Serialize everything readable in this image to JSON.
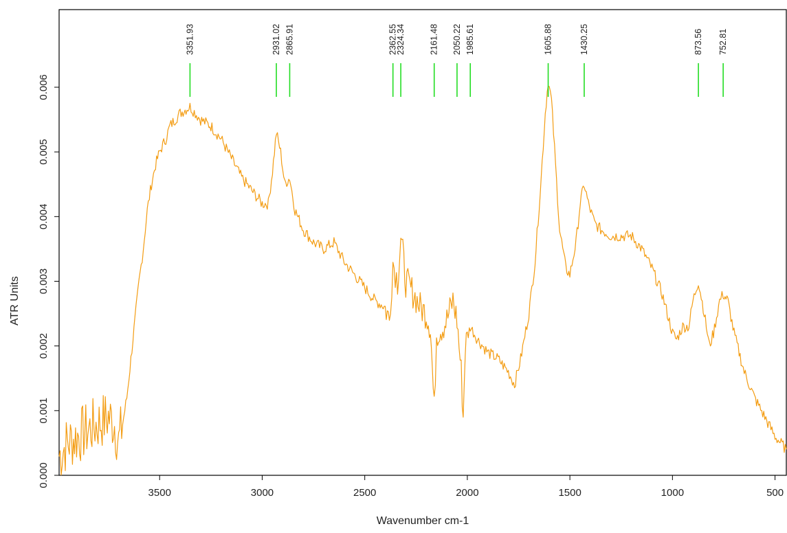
{
  "chart_data": {
    "type": "line",
    "title": "",
    "xlabel": "Wavenumber cm-1",
    "ylabel": "ATR Units",
    "xlim": [
      3990,
      445
    ],
    "ylim": [
      0.0,
      0.0072
    ],
    "x_reversed": true,
    "grid": false,
    "legend": "none",
    "xticks": [
      3500,
      3000,
      2500,
      2000,
      1500,
      1000,
      500
    ],
    "xtick_labels": [
      "3500",
      "3000",
      "2500",
      "2000",
      "1500",
      "1000",
      "500"
    ],
    "yticks": [
      0.0,
      0.001,
      0.002,
      0.003,
      0.004,
      0.005,
      0.006
    ],
    "ytick_labels": [
      "0.000",
      "0.001",
      "0.002",
      "0.003",
      "0.004",
      "0.005",
      "0.006"
    ],
    "colors": {
      "spectrum": "#f39c12",
      "peak_marker": "#22dd22",
      "axis": "#000000"
    },
    "series": [
      {
        "points": [
          [
            3990,
            0.0003
          ],
          [
            3950,
            0.0005
          ],
          [
            3900,
            0.0006
          ],
          [
            3850,
            0.0007
          ],
          [
            3800,
            0.0008
          ],
          [
            3750,
            0.0009
          ],
          [
            3720,
            0.0008
          ],
          [
            3700,
            0.0005
          ],
          [
            3680,
            0.0008
          ],
          [
            3660,
            0.0012
          ],
          [
            3640,
            0.0018
          ],
          [
            3620,
            0.0024
          ],
          [
            3600,
            0.003
          ],
          [
            3580,
            0.0035
          ],
          [
            3560,
            0.0041
          ],
          [
            3540,
            0.0045
          ],
          [
            3520,
            0.0048
          ],
          [
            3500,
            0.005
          ],
          [
            3470,
            0.0052
          ],
          [
            3450,
            0.0054
          ],
          [
            3400,
            0.0056
          ],
          [
            3351.93,
            0.0057
          ],
          [
            3300,
            0.0055
          ],
          [
            3250,
            0.0054
          ],
          [
            3200,
            0.0052
          ],
          [
            3150,
            0.0049
          ],
          [
            3100,
            0.0046
          ],
          [
            3050,
            0.0044
          ],
          [
            3000,
            0.0042
          ],
          [
            2970,
            0.0042
          ],
          [
            2950,
            0.0047
          ],
          [
            2931.02,
            0.0053
          ],
          [
            2910,
            0.005
          ],
          [
            2890,
            0.0045
          ],
          [
            2865.91,
            0.0046
          ],
          [
            2840,
            0.0041
          ],
          [
            2800,
            0.0038
          ],
          [
            2750,
            0.0036
          ],
          [
            2700,
            0.0035
          ],
          [
            2650,
            0.0036
          ],
          [
            2600,
            0.0033
          ],
          [
            2550,
            0.0031
          ],
          [
            2500,
            0.0029
          ],
          [
            2450,
            0.0027
          ],
          [
            2400,
            0.0026
          ],
          [
            2380,
            0.0024
          ],
          [
            2362.55,
            0.0033
          ],
          [
            2340,
            0.003
          ],
          [
            2324.34,
            0.0037
          ],
          [
            2300,
            0.003
          ],
          [
            2260,
            0.0028
          ],
          [
            2230,
            0.0026
          ],
          [
            2200,
            0.0025
          ],
          [
            2180,
            0.0023
          ],
          [
            2161.48,
            0.001
          ],
          [
            2150,
            0.0022
          ],
          [
            2120,
            0.0023
          ],
          [
            2100,
            0.0024
          ],
          [
            2070,
            0.0027
          ],
          [
            2050.22,
            0.0024
          ],
          [
            2030,
            0.0016
          ],
          [
            2020,
            0.0009
          ],
          [
            2010,
            0.002
          ],
          [
            1985.61,
            0.0023
          ],
          [
            1950,
            0.0021
          ],
          [
            1900,
            0.0019
          ],
          [
            1850,
            0.0018
          ],
          [
            1800,
            0.0016
          ],
          [
            1770,
            0.0014
          ],
          [
            1740,
            0.0018
          ],
          [
            1700,
            0.0025
          ],
          [
            1670,
            0.0033
          ],
          [
            1640,
            0.0046
          ],
          [
            1620,
            0.0056
          ],
          [
            1605.88,
            0.0061
          ],
          [
            1590,
            0.0058
          ],
          [
            1570,
            0.0048
          ],
          [
            1550,
            0.0038
          ],
          [
            1520,
            0.0032
          ],
          [
            1500,
            0.0031
          ],
          [
            1470,
            0.0036
          ],
          [
            1450,
            0.0042
          ],
          [
            1430.25,
            0.0045
          ],
          [
            1410,
            0.0042
          ],
          [
            1380,
            0.0039
          ],
          [
            1350,
            0.0038
          ],
          [
            1300,
            0.0037
          ],
          [
            1250,
            0.0037
          ],
          [
            1200,
            0.0037
          ],
          [
            1150,
            0.0035
          ],
          [
            1100,
            0.0032
          ],
          [
            1050,
            0.0028
          ],
          [
            1000,
            0.0022
          ],
          [
            980,
            0.0021
          ],
          [
            950,
            0.0023
          ],
          [
            920,
            0.0023
          ],
          [
            900,
            0.0027
          ],
          [
            873.56,
            0.003
          ],
          [
            850,
            0.0026
          ],
          [
            820,
            0.002
          ],
          [
            800,
            0.0022
          ],
          [
            770,
            0.0027
          ],
          [
            752.81,
            0.0028
          ],
          [
            730,
            0.0027
          ],
          [
            700,
            0.0022
          ],
          [
            650,
            0.0016
          ],
          [
            600,
            0.0012
          ],
          [
            550,
            0.0009
          ],
          [
            500,
            0.0006
          ],
          [
            445,
            0.0004
          ]
        ]
      }
    ],
    "peaks": [
      {
        "x": 3351.93,
        "label": "3351.93"
      },
      {
        "x": 2931.02,
        "label": "2931.02"
      },
      {
        "x": 2865.91,
        "label": "2865.91"
      },
      {
        "x": 2362.55,
        "label": "2362.55"
      },
      {
        "x": 2324.34,
        "label": "2324.34"
      },
      {
        "x": 2161.48,
        "label": "2161.48"
      },
      {
        "x": 2050.22,
        "label": "2050.22"
      },
      {
        "x": 1985.61,
        "label": "1985.61"
      },
      {
        "x": 1605.88,
        "label": "1605.88"
      },
      {
        "x": 1430.25,
        "label": "1430.25"
      },
      {
        "x": 873.56,
        "label": "873.56"
      },
      {
        "x": 752.81,
        "label": "752.81"
      }
    ]
  }
}
